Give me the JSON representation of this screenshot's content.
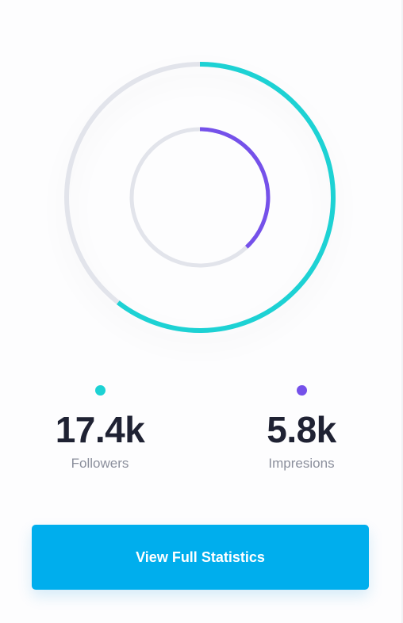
{
  "colors": {
    "track": "#e2e4eb",
    "followers": "#1dd2d4",
    "impressions": "#7551ea",
    "button": "#00aeed"
  },
  "chart": {
    "outer_ring": {
      "metric": "Followers",
      "progress": 0.605
    },
    "inner_ring": {
      "metric": "Impressions",
      "progress": 0.38
    }
  },
  "metrics": [
    {
      "value": "17.4k",
      "label": "Followers",
      "color": "#1dd2d4",
      "icon": "teal-dot-icon"
    },
    {
      "value": "5.8k",
      "label": "Impresions",
      "color": "#7551ea",
      "icon": "purple-dot-icon"
    }
  ],
  "button": {
    "label": "View Full Statistics"
  }
}
